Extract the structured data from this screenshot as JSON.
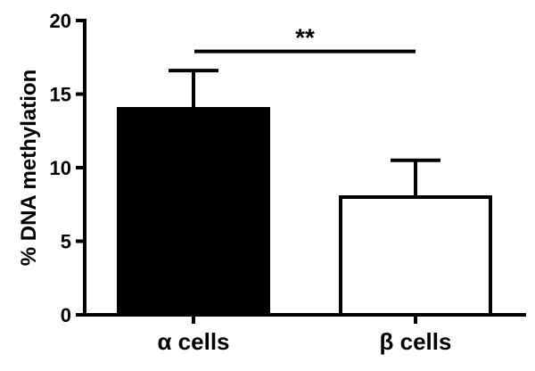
{
  "chart_data": {
    "type": "bar",
    "categories": [
      "α cells",
      "β cells"
    ],
    "values": [
      14,
      8
    ],
    "error_bars": [
      2.6,
      2.5
    ],
    "bar_fills": [
      "#000000",
      "#ffffff"
    ],
    "ylabel": "% DNA methylation",
    "ylim": [
      0,
      20
    ],
    "yticks": [
      0,
      5,
      10,
      15,
      20
    ],
    "significance": {
      "between": [
        0,
        1
      ],
      "y": 17.9,
      "label": "**"
    },
    "grid": false,
    "legend": false
  }
}
